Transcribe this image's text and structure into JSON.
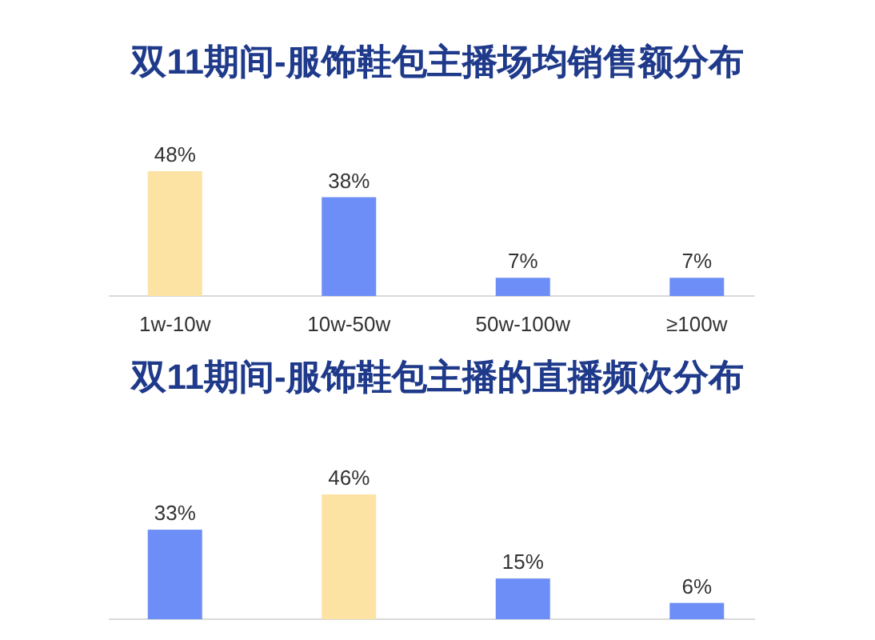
{
  "chart_data": [
    {
      "type": "bar",
      "title": "双11期间-服饰鞋包主播场均销售额分布",
      "categories": [
        "1w-10w",
        "10w-50w",
        "50w-100w",
        "≥100w"
      ],
      "values": [
        48,
        38,
        7,
        7
      ],
      "colors": [
        "#fde3a3",
        "#6d8ef6",
        "#6d8ef6",
        "#6d8ef6"
      ],
      "data_labels": true,
      "value_labels": [
        "48%",
        "38%",
        "7%",
        "7%"
      ]
    },
    {
      "type": "bar",
      "title": "双11期间-服饰鞋包主播的直播频次分布",
      "categories": [
        null,
        null,
        null,
        null
      ],
      "values": [
        33,
        46,
        15,
        6
      ],
      "colors": [
        "#6d8ef6",
        "#fde3a3",
        "#6d8ef6",
        "#6d8ef6"
      ],
      "data_labels": true,
      "value_labels": [
        "33%",
        "46%",
        "15%",
        "6%"
      ]
    }
  ]
}
